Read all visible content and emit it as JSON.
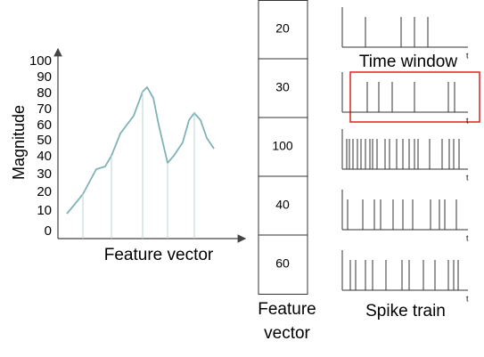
{
  "magnitude_plot": {
    "y_label": "Magnitude",
    "x_label": "Feature vector",
    "y_ticks": [
      0,
      10,
      20,
      30,
      40,
      50,
      60,
      70,
      80,
      90,
      100
    ]
  },
  "feature_column": {
    "cells": [
      20,
      30,
      100,
      40,
      60
    ],
    "label_line1": "Feature",
    "label_line2": "vector"
  },
  "spike_trains": {
    "axis_label": "t",
    "time_window_label": "Time window",
    "label": "Spike train"
  }
}
